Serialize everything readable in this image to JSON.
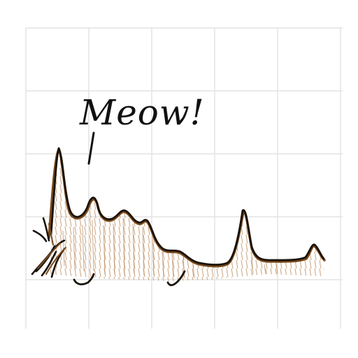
{
  "speech": {
    "text": "Meow!"
  },
  "colors": {
    "paper": "#ffffff",
    "grid": "#e3e3e3",
    "ink": "#111111",
    "outline": "#1a1208",
    "brown": "#7a4a1c",
    "fill": "#caa27c"
  },
  "icons": {
    "cat": "cat-silhouette-icon"
  }
}
